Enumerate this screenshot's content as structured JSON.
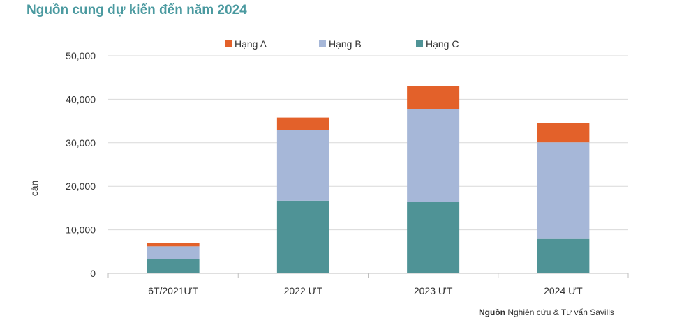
{
  "title": "Nguồn cung dự kiến đến năm 2024",
  "source": {
    "bold": "Nguồn",
    "text": " Nghiên cứu & Tư vấn Savills"
  },
  "chart_data": {
    "type": "bar",
    "stacked": true,
    "categories": [
      "6T/2021ƯT",
      "2022 ƯT",
      "2023 ƯT",
      "2024 ƯT"
    ],
    "series": [
      {
        "name": "Hạng C",
        "color": "#4f9396",
        "values": [
          3300,
          16700,
          16500,
          7900
        ]
      },
      {
        "name": "Hạng B",
        "color": "#a6b7d8",
        "values": [
          2900,
          16300,
          21300,
          22200
        ]
      },
      {
        "name": "Hạng A",
        "color": "#e3612a",
        "values": [
          800,
          2800,
          5200,
          4400
        ]
      }
    ],
    "legend_order": [
      "Hạng A",
      "Hạng B",
      "Hạng C"
    ],
    "legend_position": "top",
    "ylabel": "căn",
    "xlabel": "",
    "ylim": [
      0,
      50000
    ],
    "yticks": [
      "0",
      "10,000",
      "20,000",
      "30,000",
      "40,000",
      "50,000"
    ],
    "ytick_values": [
      0,
      10000,
      20000,
      30000,
      40000,
      50000
    ],
    "grid": true
  }
}
